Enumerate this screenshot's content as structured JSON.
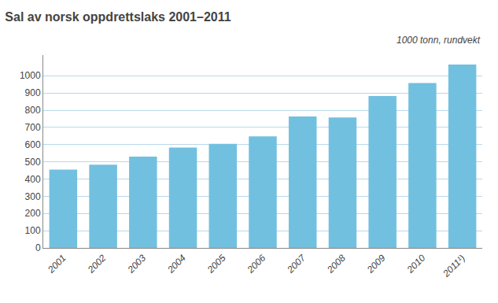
{
  "chart_data": {
    "type": "bar",
    "title": "Sal av norsk oppdrettslaks 2001–2011",
    "subtitle": "1000 tonn, rundvekt",
    "categories": [
      "2001",
      "2002",
      "2003",
      "2004",
      "2005",
      "2006",
      "2007",
      "2008",
      "2009",
      "2010",
      "2011¹)"
    ],
    "values": [
      455,
      483,
      530,
      583,
      605,
      648,
      763,
      758,
      882,
      958,
      1065
    ],
    "color": "#72c0e0",
    "ylim": [
      0,
      1120
    ],
    "yticks": [
      0,
      100,
      200,
      300,
      400,
      500,
      600,
      700,
      800,
      900,
      1000
    ],
    "grid": true
  }
}
